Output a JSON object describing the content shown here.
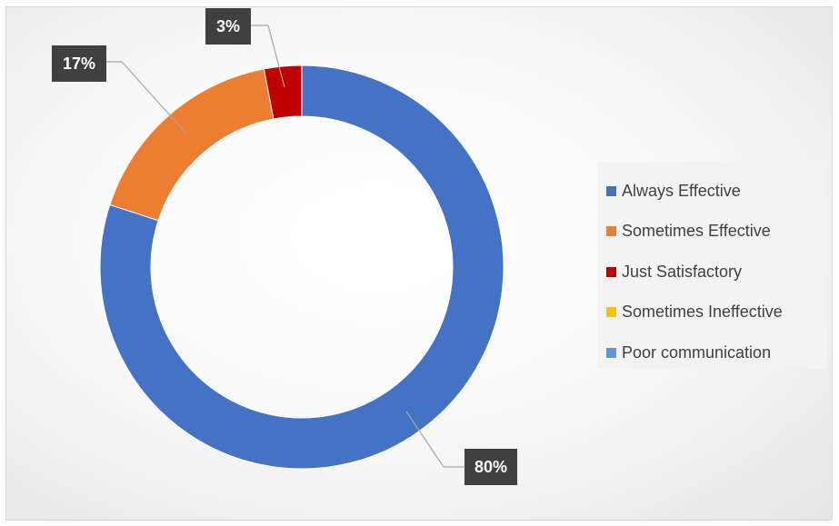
{
  "chart_data": {
    "type": "pie",
    "title": "",
    "categories": [
      "Always Effective",
      "Sometimes Effective",
      "Just Satisfactory",
      "Sometimes Ineffective",
      "Poor communication"
    ],
    "values": [
      80,
      17,
      3,
      0,
      0
    ],
    "labels": [
      "80%",
      "17%",
      "3%",
      "",
      ""
    ],
    "unit": "%",
    "colors": [
      "#4472c4",
      "#ed7d31",
      "#c00000",
      "#ffc000",
      "#5b9bd5"
    ],
    "legend_position": "right",
    "donut": true
  }
}
